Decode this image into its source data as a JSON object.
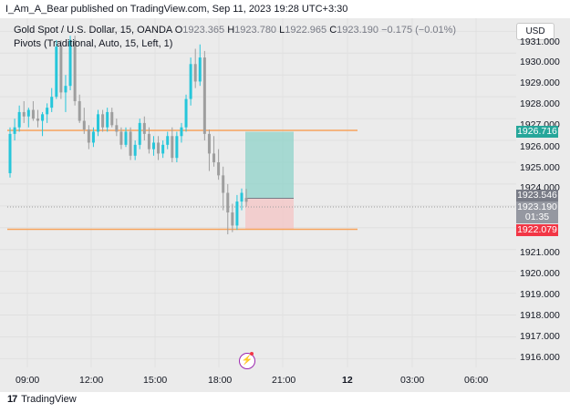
{
  "header": {
    "title": "I_Am_A_Bear published on TradingView.com, Sep 11, 2023 19:28 UTC+3:30"
  },
  "legend": {
    "symbol": "Gold Spot / U.S. Dollar, 15, OANDA",
    "o_label": "O",
    "o_value": "1923.365",
    "h_label": "H",
    "h_value": "1923.780",
    "l_label": "L",
    "l_value": "1922.965",
    "c_label": "C",
    "c_value": "1923.190",
    "change": "−0.175 (−0.01%)",
    "indicator": "Pivots (Traditional, Auto, 15, Left, 1)"
  },
  "currency_button": "USD",
  "y_axis": {
    "labels": [
      "1931.000",
      "1930.000",
      "1929.000",
      "1928.000",
      "1927.000",
      "1926.000",
      "1925.000",
      "1924.000",
      "1921.000",
      "1920.000",
      "1919.000",
      "1918.000",
      "1917.000",
      "1916.000"
    ]
  },
  "x_axis": {
    "labels": [
      "09:00",
      "12:00",
      "15:00",
      "18:00",
      "21:00",
      "12",
      "03:00",
      "06:00"
    ]
  },
  "price_tags": {
    "target": "1926.716",
    "entry": "1923.546",
    "current": "1923.190",
    "countdown": "01:35",
    "stop": "1922.079"
  },
  "colors": {
    "pivot_line": "#f7a35c",
    "up_candle": "#26c6da",
    "down_candle": "#9e9e9e",
    "profit_zone": "#8fd3c9",
    "loss_zone": "#f4c7c7",
    "target_tag": "#26a69a",
    "stop_tag": "#f23645",
    "current_tag": "#787b86"
  },
  "footer": {
    "logo": "17",
    "brand": "TradingView"
  },
  "chart_data": {
    "type": "candlestick",
    "x_range": [
      "09:00",
      "06:00"
    ],
    "ylim": [
      1915.6,
      1931.6
    ],
    "pivot_levels": [
      1926.716,
      1922.079
    ],
    "position": {
      "target": 1926.716,
      "entry": 1923.546,
      "stop": 1922.079,
      "direction": "long"
    },
    "candles": [
      {
        "o": 1924.5,
        "h": 1926.6,
        "l": 1924.3,
        "c": 1926.3
      },
      {
        "o": 1926.3,
        "h": 1927.0,
        "l": 1926.0,
        "c": 1926.6
      },
      {
        "o": 1926.6,
        "h": 1927.6,
        "l": 1926.4,
        "c": 1927.3
      },
      {
        "o": 1927.3,
        "h": 1927.8,
        "l": 1926.8,
        "c": 1927.1
      },
      {
        "o": 1927.1,
        "h": 1927.5,
        "l": 1926.6,
        "c": 1927.4
      },
      {
        "o": 1927.4,
        "h": 1927.8,
        "l": 1926.9,
        "c": 1927.0
      },
      {
        "o": 1927.0,
        "h": 1927.4,
        "l": 1926.6,
        "c": 1926.9
      },
      {
        "o": 1926.9,
        "h": 1927.3,
        "l": 1926.2,
        "c": 1927.2
      },
      {
        "o": 1927.2,
        "h": 1927.7,
        "l": 1926.8,
        "c": 1927.5
      },
      {
        "o": 1927.5,
        "h": 1928.4,
        "l": 1927.3,
        "c": 1928.0
      },
      {
        "o": 1928.0,
        "h": 1930.6,
        "l": 1927.9,
        "c": 1930.3
      },
      {
        "o": 1930.3,
        "h": 1930.6,
        "l": 1927.9,
        "c": 1928.2
      },
      {
        "o": 1928.2,
        "h": 1929.0,
        "l": 1927.3,
        "c": 1928.5
      },
      {
        "o": 1928.5,
        "h": 1930.8,
        "l": 1928.3,
        "c": 1930.6
      },
      {
        "o": 1930.6,
        "h": 1930.8,
        "l": 1927.6,
        "c": 1927.8
      },
      {
        "o": 1927.8,
        "h": 1928.1,
        "l": 1926.8,
        "c": 1926.9
      },
      {
        "o": 1926.9,
        "h": 1927.5,
        "l": 1926.3,
        "c": 1926.5
      },
      {
        "o": 1926.5,
        "h": 1926.7,
        "l": 1925.6,
        "c": 1925.9
      },
      {
        "o": 1925.9,
        "h": 1926.6,
        "l": 1925.7,
        "c": 1926.4
      },
      {
        "o": 1926.4,
        "h": 1927.4,
        "l": 1926.2,
        "c": 1927.2
      },
      {
        "o": 1927.2,
        "h": 1927.4,
        "l": 1926.4,
        "c": 1926.6
      },
      {
        "o": 1926.6,
        "h": 1927.5,
        "l": 1926.4,
        "c": 1927.3
      },
      {
        "o": 1927.3,
        "h": 1927.5,
        "l": 1926.6,
        "c": 1926.7
      },
      {
        "o": 1926.7,
        "h": 1927.0,
        "l": 1926.2,
        "c": 1926.4
      },
      {
        "o": 1926.4,
        "h": 1926.6,
        "l": 1925.6,
        "c": 1925.8
      },
      {
        "o": 1925.8,
        "h": 1926.6,
        "l": 1925.7,
        "c": 1926.4
      },
      {
        "o": 1926.4,
        "h": 1926.6,
        "l": 1925.1,
        "c": 1925.3
      },
      {
        "o": 1925.3,
        "h": 1926.0,
        "l": 1925.1,
        "c": 1925.8
      },
      {
        "o": 1925.8,
        "h": 1927.0,
        "l": 1925.6,
        "c": 1926.8
      },
      {
        "o": 1926.8,
        "h": 1927.1,
        "l": 1926.0,
        "c": 1926.3
      },
      {
        "o": 1926.3,
        "h": 1926.6,
        "l": 1925.4,
        "c": 1925.6
      },
      {
        "o": 1925.6,
        "h": 1926.2,
        "l": 1925.3,
        "c": 1925.9
      },
      {
        "o": 1925.9,
        "h": 1926.2,
        "l": 1925.1,
        "c": 1925.4
      },
      {
        "o": 1925.4,
        "h": 1926.0,
        "l": 1925.2,
        "c": 1925.8
      },
      {
        "o": 1925.8,
        "h": 1926.4,
        "l": 1925.6,
        "c": 1926.2
      },
      {
        "o": 1926.2,
        "h": 1926.6,
        "l": 1925.0,
        "c": 1925.2
      },
      {
        "o": 1925.2,
        "h": 1926.4,
        "l": 1925.0,
        "c": 1926.2
      },
      {
        "o": 1926.2,
        "h": 1926.8,
        "l": 1925.9,
        "c": 1926.6
      },
      {
        "o": 1926.6,
        "h": 1928.1,
        "l": 1926.4,
        "c": 1927.9
      },
      {
        "o": 1927.9,
        "h": 1929.8,
        "l": 1927.6,
        "c": 1929.5
      },
      {
        "o": 1929.5,
        "h": 1930.2,
        "l": 1928.4,
        "c": 1928.7
      },
      {
        "o": 1928.7,
        "h": 1930.4,
        "l": 1928.5,
        "c": 1929.8
      },
      {
        "o": 1929.8,
        "h": 1930.1,
        "l": 1926.0,
        "c": 1926.3
      },
      {
        "o": 1926.3,
        "h": 1926.5,
        "l": 1924.6,
        "c": 1925.4
      },
      {
        "o": 1925.4,
        "h": 1926.2,
        "l": 1924.8,
        "c": 1925.0
      },
      {
        "o": 1925.0,
        "h": 1925.6,
        "l": 1924.2,
        "c": 1924.4
      },
      {
        "o": 1924.4,
        "h": 1924.8,
        "l": 1922.8,
        "c": 1923.6
      },
      {
        "o": 1923.6,
        "h": 1924.0,
        "l": 1921.7,
        "c": 1922.7
      },
      {
        "o": 1922.7,
        "h": 1923.1,
        "l": 1921.8,
        "c": 1922.1
      },
      {
        "o": 1922.1,
        "h": 1923.5,
        "l": 1921.9,
        "c": 1923.2
      },
      {
        "o": 1923.2,
        "h": 1923.8,
        "l": 1922.8,
        "c": 1923.6
      },
      {
        "o": 1923.365,
        "h": 1923.78,
        "l": 1922.965,
        "c": 1923.19
      }
    ]
  }
}
